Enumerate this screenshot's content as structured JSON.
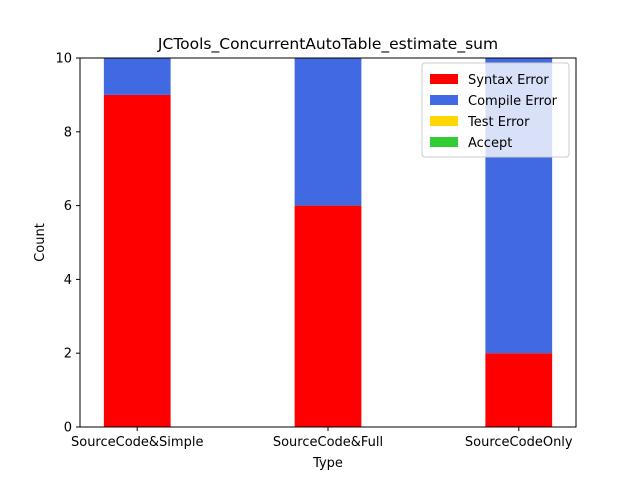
{
  "chart_data": {
    "type": "bar",
    "stacked": true,
    "title": "JCTools_ConcurrentAutoTable_estimate_sum",
    "xlabel": "Type",
    "ylabel": "Count",
    "categories": [
      "SourceCode&Simple",
      "SourceCode&Full",
      "SourceCodeOnly"
    ],
    "ylim": [
      0,
      10
    ],
    "yticks": [
      0,
      2,
      4,
      6,
      8,
      10
    ],
    "legend_position": "top-right",
    "grid": false,
    "series": [
      {
        "name": "Syntax Error",
        "color": "#ff0000",
        "values": [
          9,
          6,
          2
        ]
      },
      {
        "name": "Compile Error",
        "color": "#4169e1",
        "values": [
          1,
          4,
          8
        ]
      },
      {
        "name": "Test Error",
        "color": "#ffd700",
        "values": [
          0,
          0,
          0
        ]
      },
      {
        "name": "Accept",
        "color": "#32cd32",
        "values": [
          0,
          0,
          0
        ]
      }
    ]
  }
}
